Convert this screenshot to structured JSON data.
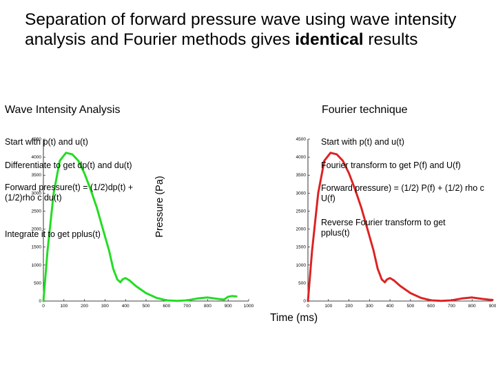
{
  "slide": {
    "title_part1": "Separation of forward pressure wave using wave intensity analysis and Fourier methods gives ",
    "title_bold": "identical",
    "title_part2": " results",
    "left_heading": "Wave Intensity Analysis",
    "right_heading": "Fourier technique",
    "left_steps": [
      "Start with p(t) and u(t)",
      "Differentiate to get dp(t) and du(t)",
      "Forward pressure(t) = (1/2)dp(t) + (1/2)rho c du(t)",
      "Integrate it to get pplus(t)"
    ],
    "right_steps": [
      "Start with p(t) and u(t)",
      "Fourier transform to get P(f) and U(f)",
      "Forward pressure) = (1/2) P(f) + (1/2) rho c U(f)",
      "Reverse Fourier transform to get pplus(t)"
    ],
    "ylabel": "Pressure (Pa)",
    "xlabel": "Time (ms)"
  },
  "chart_data": [
    {
      "type": "line",
      "xlim": [
        0,
        1000
      ],
      "ylim": [
        0,
        4500
      ],
      "xticks": [
        "0",
        "100",
        "200",
        "300",
        "400",
        "500",
        "600",
        "700",
        "800",
        "900",
        "1000"
      ],
      "yticks": [
        "0",
        "500",
        "1000",
        "1500",
        "2000",
        "2500",
        "3000",
        "3500",
        "4000",
        "4500"
      ],
      "color": "#22dd22",
      "series": [
        {
          "x": [
            0,
            20,
            50,
            80,
            110,
            140,
            170,
            200,
            230,
            260,
            290,
            320,
            340,
            360,
            375,
            385,
            400,
            420,
            450,
            500,
            550,
            600,
            650,
            700,
            750,
            800,
            850,
            880,
            900,
            920,
            940
          ],
          "y": [
            0,
            1400,
            3000,
            3900,
            4120,
            4080,
            3900,
            3550,
            3100,
            2600,
            2000,
            1400,
            900,
            600,
            520,
            600,
            640,
            570,
            420,
            220,
            90,
            20,
            5,
            20,
            70,
            100,
            60,
            40,
            120,
            140,
            130
          ]
        }
      ]
    },
    {
      "type": "line",
      "xlim": [
        0,
        900
      ],
      "ylim": [
        0,
        4500
      ],
      "xticks": [
        "0",
        "100",
        "200",
        "300",
        "400",
        "500",
        "600",
        "700",
        "800",
        "900"
      ],
      "yticks": [
        "0",
        "500",
        "1000",
        "1500",
        "2000",
        "2500",
        "3000",
        "3500",
        "4000",
        "4500"
      ],
      "color": "#dd2222",
      "series": [
        {
          "x": [
            0,
            20,
            50,
            80,
            110,
            140,
            170,
            200,
            230,
            260,
            290,
            320,
            340,
            360,
            375,
            385,
            400,
            420,
            450,
            500,
            550,
            600,
            650,
            700,
            750,
            800,
            850,
            880,
            900
          ],
          "y": [
            0,
            1400,
            3000,
            3900,
            4120,
            4080,
            3900,
            3550,
            3100,
            2600,
            2000,
            1400,
            900,
            600,
            520,
            600,
            640,
            570,
            420,
            220,
            90,
            20,
            5,
            20,
            70,
            100,
            60,
            40,
            30
          ]
        }
      ]
    }
  ]
}
